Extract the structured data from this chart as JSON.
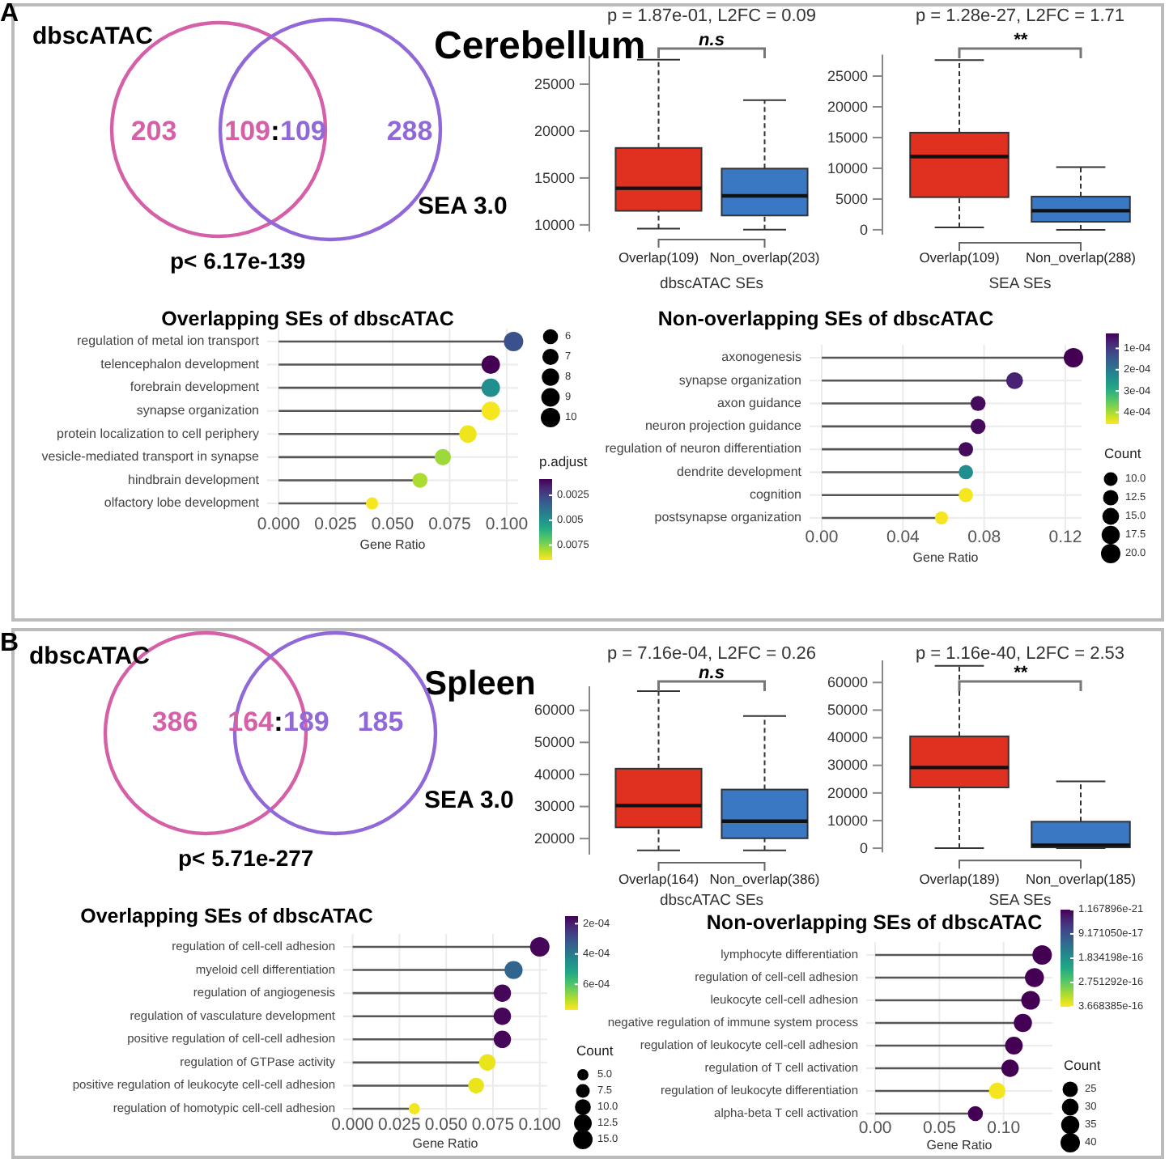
{
  "chart_data": [
    {
      "type": "other",
      "title": "Cerebellum",
      "categories": [
        "dbscATAC",
        "SEA 3.0"
      ],
      "colors": [
        "#d660a8",
        "#9068d8"
      ],
      "annotations": [
        "A",
        "p< 6.17e-139",
        "203",
        "109",
        ":",
        "109",
        "288"
      ]
    },
    {
      "type": "box",
      "title": "p = 1.87e-01, L2FC = 0.09",
      "annotations": [
        "n.s"
      ],
      "categories": [
        "Overlap(109)",
        "Non_overlap(203)"
      ],
      "xlabel": "dbscATAC SEs",
      "colors": [
        "#e03020",
        "#3b78c4"
      ],
      "ylim": [
        9300,
        28000
      ],
      "yticks": [
        10000,
        15000,
        20000,
        25000
      ],
      "boxes": [
        {
          "low": 9600,
          "q1": 11500,
          "median": 13900,
          "q3": 18200,
          "high": 27600
        },
        {
          "low": 9500,
          "q1": 11000,
          "median": 13100,
          "q3": 16000,
          "high": 23300
        }
      ]
    },
    {
      "type": "box",
      "title": "p = 1.28e-27, L2FC = 1.71",
      "annotations": [
        "**"
      ],
      "categories": [
        "Overlap(109)",
        "Non_overlap(288)"
      ],
      "xlabel": "SEA SEs",
      "colors": [
        "#e03020",
        "#3b78c4"
      ],
      "ylim": [
        -800,
        28500
      ],
      "yticks": [
        0,
        5000,
        10000,
        15000,
        20000,
        25000
      ],
      "boxes": [
        {
          "low": 400,
          "q1": 5300,
          "median": 11900,
          "q3": 15800,
          "high": 27600
        },
        {
          "low": 0,
          "q1": 1300,
          "median": 3100,
          "q3": 5400,
          "high": 10200
        }
      ]
    },
    {
      "type": "lollipop",
      "orientation": "horizontal",
      "title": "Overlapping SEs of dbscATAC",
      "xlabel": "Gene Ratio",
      "grid": true,
      "categories": [
        "regulation of metal ion transport",
        "telencephalon development",
        "forebrain development",
        "synapse organization",
        "protein localization to cell periphery",
        "vesicle-mediated transport in synapse",
        "hindbrain development",
        "olfactory lobe development"
      ],
      "values": [
        0.103,
        0.093,
        0.093,
        0.093,
        0.083,
        0.072,
        0.062,
        0.041
      ],
      "sizes": [
        10,
        9,
        9,
        9,
        8,
        7,
        6,
        4
      ],
      "size_legend": [
        6,
        7,
        8,
        9,
        10
      ],
      "cvalues": [
        0.0029,
        0.0009,
        0.0049,
        0.0089,
        0.0088,
        0.0078,
        0.008,
        0.0089
      ],
      "clabel": "p.adjust",
      "clim": [
        0.00087,
        0.009
      ],
      "cticks": [
        0.0025,
        0.005,
        0.0075
      ],
      "xlim": [
        -0.005,
        0.105
      ],
      "xticks": [
        {
          "value": 0,
          "label": "0.000"
        },
        0.025,
        {
          "value": 0.05,
          "label": "0.050"
        },
        0.075,
        {
          "value": 0.1,
          "label": "0.100"
        }
      ]
    },
    {
      "type": "lollipop",
      "orientation": "horizontal",
      "title": "Non-overlapping SEs of dbscATAC",
      "xlabel": "Gene Ratio",
      "grid": true,
      "legend_title": "Count",
      "categories": [
        "axonogenesis",
        "synapse organization",
        "axon guidance",
        "neuron projection guidance",
        "regulation of neuron differentiation",
        "dendrite development",
        "cognition",
        "postsynapse organization"
      ],
      "values": [
        0.124,
        0.095,
        0.077,
        0.077,
        0.071,
        0.071,
        0.071,
        0.059
      ],
      "sizes": [
        20,
        15,
        12,
        12,
        11,
        11,
        11,
        9
      ],
      "size_legend": [
        {
          "value": 10,
          "label": "10.0"
        },
        12.5,
        {
          "value": 15,
          "label": "15.0"
        },
        17.5,
        {
          "value": 20,
          "label": "20.0"
        }
      ],
      "cvalues": [
        3e-05,
        7e-05,
        4e-05,
        4e-05,
        4e-05,
        0.00024,
        0.00045,
        0.00045
      ],
      "clim": [
        3e-05,
        0.000455
      ],
      "cticks": [
        {
          "value": 0.0001,
          "label": "1e-04"
        },
        {
          "value": 0.0002,
          "label": "2e-04"
        },
        {
          "value": 0.0003,
          "label": "3e-04"
        },
        {
          "value": 0.0004,
          "label": "4e-04"
        }
      ],
      "xlim": [
        -0.006,
        0.128
      ],
      "xticks": [
        {
          "value": 0,
          "label": "0.00"
        },
        0.04,
        0.08,
        0.12
      ]
    },
    {
      "type": "other",
      "title": "Spleen",
      "categories": [
        "dbscATAC",
        "SEA 3.0"
      ],
      "colors": [
        "#d660a8",
        "#9068d8"
      ],
      "annotations": [
        "B",
        "p< 5.71e-277",
        "386",
        "164",
        ":",
        "189",
        "185"
      ]
    },
    {
      "type": "box",
      "title": "p = 7.16e-04, L2FC = 0.26",
      "annotations": [
        "n.s"
      ],
      "categories": [
        "Overlap(164)",
        "Non_overlap(386)"
      ],
      "xlabel": "dbscATAC SEs",
      "colors": [
        "#e03020",
        "#3b78c4"
      ],
      "ylim": [
        15000,
        67500
      ],
      "yticks": [
        20000,
        30000,
        40000,
        50000,
        60000
      ],
      "boxes": [
        {
          "low": 16300,
          "q1": 23500,
          "median": 30300,
          "q3": 41800,
          "high": 66000
        },
        {
          "low": 16300,
          "q1": 20100,
          "median": 25400,
          "q3": 35300,
          "high": 58200
        }
      ]
    },
    {
      "type": "box",
      "title": "p = 1.16e-40, L2FC = 2.53",
      "annotations": [
        "**"
      ],
      "categories": [
        "Overlap(189)",
        "Non_overlap(185)"
      ],
      "xlabel": "SEA SEs",
      "colors": [
        "#e03020",
        "#3b78c4"
      ],
      "ylim": [
        -1500,
        68000
      ],
      "yticks": [
        0,
        10000,
        20000,
        30000,
        40000,
        50000,
        60000
      ],
      "boxes": [
        {
          "low": 0,
          "q1": 22000,
          "median": 29200,
          "q3": 40500,
          "high": 66000
        },
        {
          "low": 0,
          "q1": 300,
          "median": 1100,
          "q3": 9600,
          "high": 24200
        }
      ]
    },
    {
      "type": "lollipop",
      "orientation": "horizontal",
      "title": "Overlapping SEs of dbscATAC",
      "xlabel": "Gene Ratio",
      "grid": true,
      "legend_title": "Count",
      "categories": [
        "regulation of cell-cell adhesion",
        "myeloid cell differentiation",
        "regulation of angiogenesis",
        "regulation of vasculature development",
        "positive regulation of cell-cell adhesion",
        "regulation of GTPase activity",
        "positive regulation of leukocyte cell-cell adhesion",
        "regulation of homotypic cell-cell adhesion"
      ],
      "values": [
        0.1,
        0.086,
        0.08,
        0.08,
        0.08,
        0.072,
        0.066,
        0.033
      ],
      "sizes": [
        15,
        13,
        12,
        12,
        12,
        11,
        10,
        5
      ],
      "size_legend": [
        {
          "value": 5,
          "label": "5.0"
        },
        7.5,
        {
          "value": 10,
          "label": "10.0"
        },
        12.5,
        {
          "value": 15,
          "label": "15.0"
        }
      ],
      "cvalues": [
        0.00016,
        0.00035,
        0.00016,
        0.00016,
        0.00016,
        0.00075,
        0.00075,
        0.00076
      ],
      "clim": [
        0.00015,
        0.00077
      ],
      "cticks": [
        {
          "value": 0.0002,
          "label": "2e-04"
        },
        {
          "value": 0.0004,
          "label": "4e-04"
        },
        {
          "value": 0.0006,
          "label": "6e-04"
        }
      ],
      "xlim": [
        -0.005,
        0.104
      ],
      "xticks": [
        {
          "value": 0,
          "label": "0.000"
        },
        0.025,
        {
          "value": 0.05,
          "label": "0.050"
        },
        0.075,
        {
          "value": 0.1,
          "label": "0.100"
        }
      ]
    },
    {
      "type": "lollipop",
      "orientation": "horizontal",
      "title": "Non-overlapping SEs of dbscATAC",
      "xlabel": "Gene Ratio",
      "grid": true,
      "legend_title": "Count",
      "categories": [
        "lymphocyte differentiation",
        "regulation of cell-cell adhesion",
        "leukocyte cell-cell adhesion",
        "negative regulation of immune system process",
        "regulation of leukocyte cell-cell adhesion",
        "regulation of T cell activation",
        "regulation of leukocyte differentiation",
        "alpha-beta T cell activation"
      ],
      "values": [
        0.13,
        0.124,
        0.121,
        0.115,
        0.108,
        0.105,
        0.095,
        0.078
      ],
      "sizes": [
        40,
        38,
        37,
        35,
        33,
        32,
        29,
        24
      ],
      "size_legend": [
        25,
        30,
        35,
        40
      ],
      "cvalues": [
        1.2e-21,
        1.2e-21,
        1.2e-21,
        1.2e-21,
        1.2e-21,
        1.2e-21,
        3.6e-16,
        1.2e-21
      ],
      "clim": [
        1.167896e-21,
        3.668385e-16
      ],
      "cticks": [
        {
          "value": 1.167896e-21,
          "label": "1.167896e-21"
        },
        {
          "value": 9.17105e-17,
          "label": "9.171050e-17"
        },
        {
          "value": 1.834198e-16,
          "label": "1.834198e-16"
        },
        {
          "value": 2.751292e-16,
          "label": "2.751292e-16"
        },
        {
          "value": 3.668385e-16,
          "label": "3.668385e-16"
        }
      ],
      "xlim": [
        -0.007,
        0.138
      ],
      "xticks": [
        {
          "value": 0,
          "label": "0.00"
        },
        0.05,
        {
          "value": 0.1,
          "label": "0.10"
        }
      ]
    }
  ]
}
